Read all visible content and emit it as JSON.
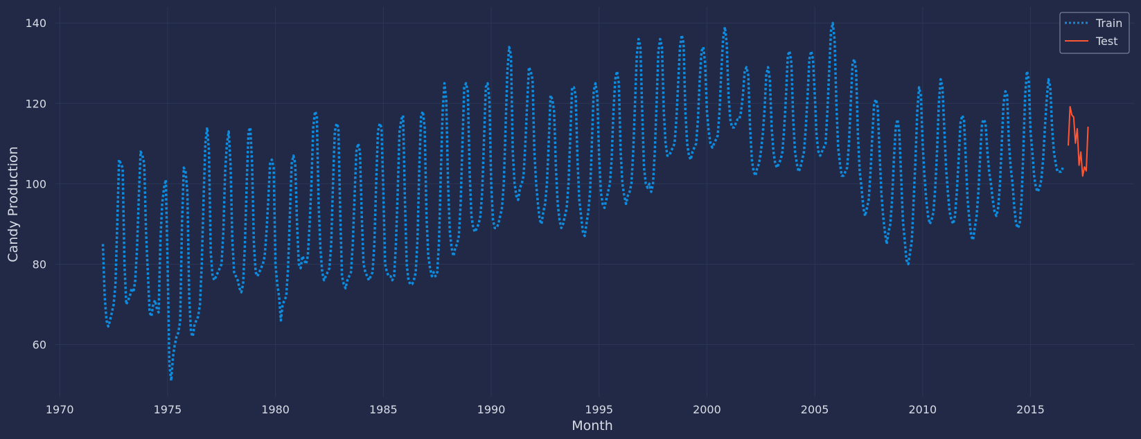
{
  "chart_data": {
    "type": "line",
    "xlabel": "Month",
    "ylabel": "Candy Production",
    "xlim": [
      1969.8,
      2019.8
    ],
    "ylim": [
      47,
      144
    ],
    "x_ticks": [
      1970,
      1975,
      1980,
      1985,
      1990,
      1995,
      2000,
      2005,
      2010,
      2015
    ],
    "y_ticks": [
      60,
      80,
      100,
      120,
      140
    ],
    "grid": true,
    "legend_position": "top-right",
    "colors": {
      "background": "#212946",
      "grid": "#2c3756",
      "train": "#0e8de0",
      "test": "#ff5733"
    },
    "series": [
      {
        "name": "Train",
        "style": "dotted",
        "x_start": 1972.0,
        "x_step": 0.0833333,
        "values": [
          85,
          72,
          66,
          64.5,
          66,
          68,
          70,
          75,
          90,
          106,
          105,
          104,
          80,
          70,
          71,
          72,
          74,
          73,
          76,
          84,
          97,
          108,
          107,
          105,
          88,
          78,
          68,
          67,
          70,
          71,
          69,
          68,
          86,
          95,
          99,
          101,
          80,
          55,
          51,
          57,
          60,
          62,
          63,
          66,
          90,
          104,
          103,
          98,
          72,
          63,
          62,
          65,
          66,
          67,
          70,
          80,
          96,
          110,
          114,
          108,
          83,
          77,
          76,
          77,
          78,
          79,
          80,
          88,
          103,
          110,
          113,
          105,
          86,
          78,
          77,
          76,
          74,
          73,
          75,
          85,
          100,
          113,
          114,
          105,
          85,
          78,
          77,
          78,
          79,
          80,
          82,
          88,
          96,
          105,
          106,
          104,
          80,
          75,
          72,
          66,
          70,
          71,
          72,
          79,
          92,
          105,
          107,
          105,
          90,
          80,
          79,
          82,
          81,
          80,
          82,
          90,
          100,
          114,
          118,
          117,
          95,
          84,
          78,
          76,
          77,
          78,
          79,
          85,
          100,
          113,
          115,
          114,
          93,
          77,
          75,
          74,
          76,
          77,
          78,
          85,
          97,
          108,
          110,
          108,
          92,
          80,
          78,
          77,
          76,
          77,
          78,
          85,
          100,
          113,
          115,
          114,
          98,
          80,
          78,
          77,
          77,
          76,
          77,
          85,
          98,
          113,
          116,
          117,
          96,
          80,
          76,
          75,
          75,
          76,
          78,
          86,
          104,
          117,
          118,
          114,
          92,
          82,
          79,
          77,
          78,
          77,
          78,
          86,
          103,
          118,
          125,
          121,
          100,
          88,
          84,
          82,
          84,
          85,
          87,
          95,
          110,
          124,
          125,
          123,
          103,
          92,
          89,
          88,
          89,
          90,
          92,
          98,
          111,
          124,
          125,
          121,
          100,
          91,
          89,
          89,
          90,
          92,
          94,
          100,
          114,
          128,
          134,
          132,
          108,
          100,
          97,
          96,
          99,
          100,
          102,
          110,
          120,
          129,
          128,
          126,
          108,
          100,
          95,
          91,
          90,
          93,
          95,
          100,
          110,
          122,
          121,
          118,
          104,
          95,
          91,
          89,
          90,
          92,
          94,
          100,
          112,
          124,
          124,
          122,
          106,
          96,
          92,
          88,
          87,
          90,
          93,
          98,
          110,
          123,
          125,
          122,
          107,
          98,
          95,
          94,
          96,
          98,
          100,
          106,
          118,
          126,
          128,
          125,
          108,
          100,
          97,
          95,
          97,
          98,
          100,
          108,
          120,
          132,
          136,
          134,
          118,
          104,
          100,
          99,
          100,
          98,
          100,
          108,
          120,
          133,
          136,
          134,
          118,
          110,
          107,
          107,
          108,
          109,
          110,
          116,
          125,
          134,
          137,
          135,
          118,
          110,
          107,
          106,
          108,
          109,
          110,
          116,
          126,
          133,
          134,
          130,
          118,
          113,
          110,
          109,
          110,
          111,
          112,
          118,
          128,
          136,
          139,
          135,
          122,
          116,
          114,
          114,
          115,
          116,
          116,
          118,
          122,
          128,
          129,
          127,
          114,
          106,
          103,
          102,
          104,
          105,
          108,
          112,
          118,
          127,
          129,
          126,
          114,
          108,
          105,
          104,
          105,
          106,
          108,
          114,
          122,
          132,
          133,
          130,
          116,
          108,
          105,
          103,
          104,
          106,
          108,
          114,
          122,
          131,
          133,
          131,
          122,
          112,
          108,
          107,
          108,
          109,
          110,
          118,
          128,
          138,
          140,
          136,
          120,
          109,
          105,
          102,
          102,
          103,
          104,
          110,
          120,
          130,
          131,
          128,
          112,
          103,
          99,
          94,
          92,
          94,
          96,
          103,
          112,
          120,
          121,
          119,
          108,
          98,
          92,
          88,
          85,
          88,
          90,
          96,
          106,
          114,
          116,
          113,
          102,
          91,
          86,
          81,
          80,
          83,
          86,
          96,
          106,
          118,
          124,
          122,
          110,
          102,
          96,
          92,
          90,
          91,
          93,
          99,
          108,
          120,
          126,
          124,
          114,
          104,
          98,
          93,
          91,
          90,
          92,
          98,
          106,
          115,
          117,
          116,
          106,
          96,
          91,
          87,
          86,
          89,
          92,
          98,
          107,
          115,
          116,
          115,
          108,
          103,
          100,
          96,
          93,
          92,
          94,
          100,
          110,
          120,
          123,
          122,
          110,
          104,
          100,
          94,
          90,
          89,
          90,
          96,
          108,
          122,
          128,
          126,
          113,
          108,
          102,
          99,
          98,
          99,
          101,
          106,
          114,
          121,
          126,
          124,
          114,
          108,
          105,
          103,
          103,
          103,
          104
        ]
      },
      {
        "name": "Test",
        "style": "solid",
        "x_start": 2016.75,
        "x_step": 0.0833333,
        "values": [
          109.5,
          119.2,
          117.1,
          116.6,
          110.1,
          113.7,
          104.6,
          107.9,
          101.9,
          104.2,
          103.2,
          114.2
        ]
      }
    ]
  }
}
